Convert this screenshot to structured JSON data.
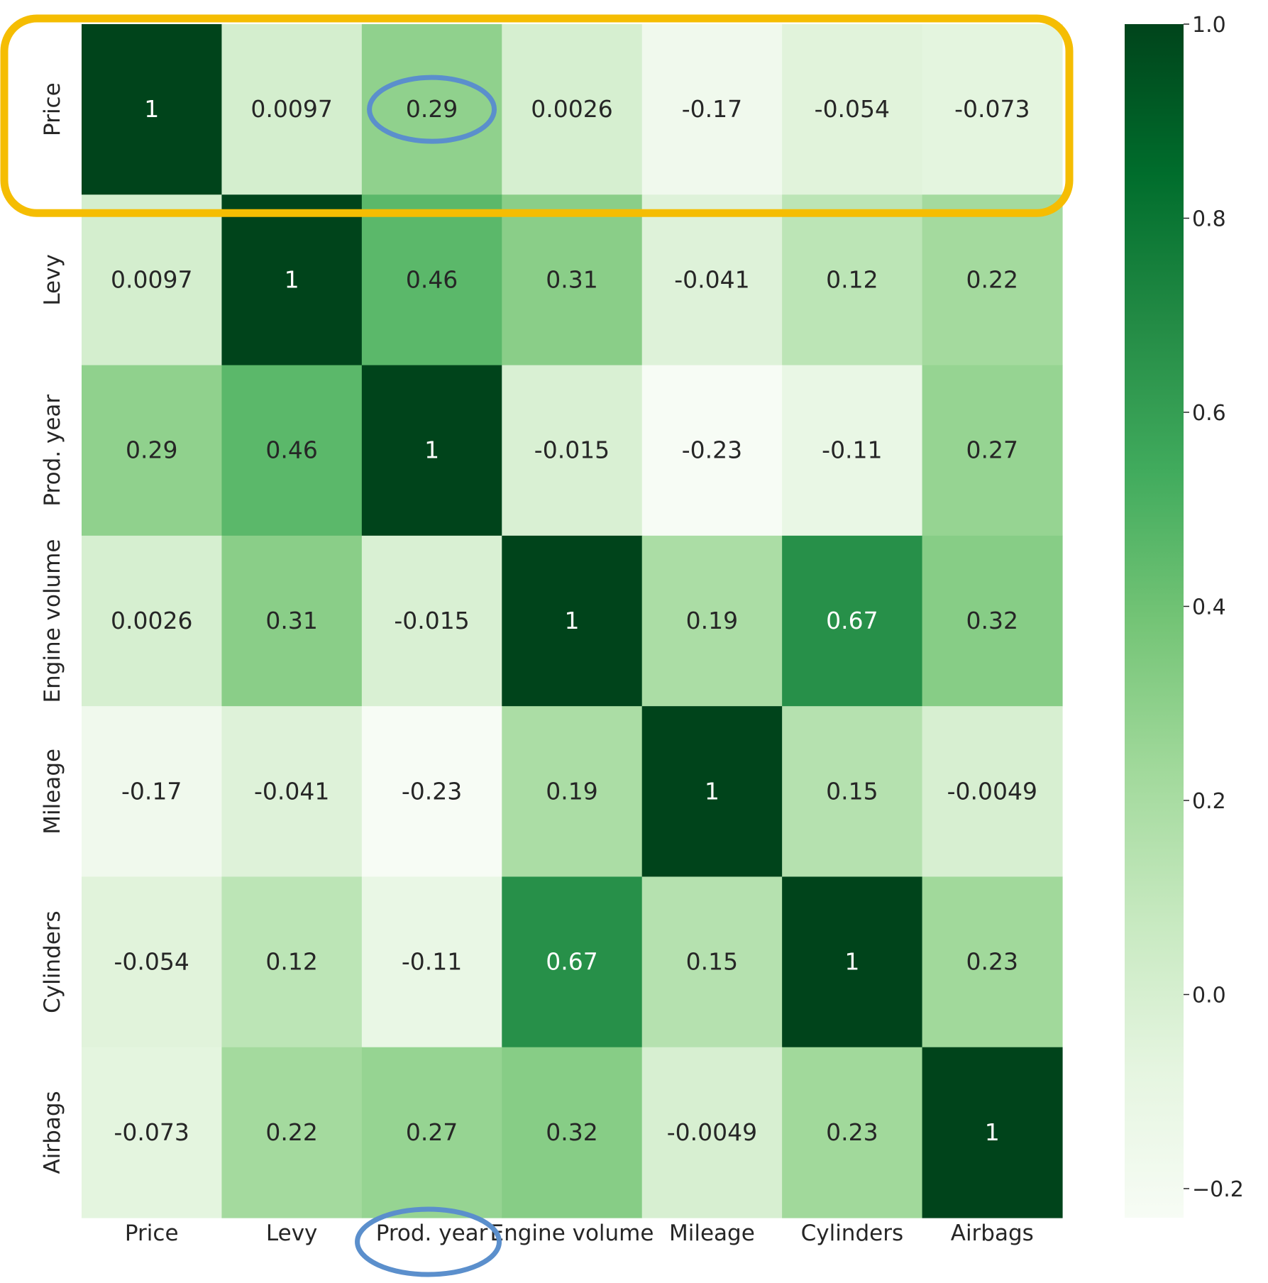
{
  "chart_data": {
    "type": "heatmap",
    "title": "",
    "xlabel": "",
    "ylabel": "",
    "x_categories": [
      "Price",
      "Levy",
      "Prod. year",
      "Engine volume",
      "Mileage",
      "Cylinders",
      "Airbags"
    ],
    "y_categories": [
      "Price",
      "Levy",
      "Prod. year",
      "Engine volume",
      "Mileage",
      "Cylinders",
      "Airbags"
    ],
    "values": [
      [
        1,
        0.0097,
        0.29,
        0.0026,
        -0.17,
        -0.054,
        -0.073
      ],
      [
        0.0097,
        1,
        0.46,
        0.31,
        -0.041,
        0.12,
        0.22
      ],
      [
        0.29,
        0.46,
        1,
        -0.015,
        -0.23,
        -0.11,
        0.27
      ],
      [
        0.0026,
        0.31,
        -0.015,
        1,
        0.19,
        0.67,
        0.32
      ],
      [
        -0.17,
        -0.041,
        -0.23,
        0.19,
        1,
        0.15,
        -0.0049
      ],
      [
        -0.054,
        0.12,
        -0.11,
        0.67,
        0.15,
        1,
        0.23
      ],
      [
        -0.073,
        0.22,
        0.27,
        0.32,
        -0.0049,
        0.23,
        1
      ]
    ],
    "value_labels": [
      [
        "1",
        "0.0097",
        "0.29",
        "0.0026",
        "-0.17",
        "-0.054",
        "-0.073"
      ],
      [
        "0.0097",
        "1",
        "0.46",
        "0.31",
        "-0.041",
        "0.12",
        "0.22"
      ],
      [
        "0.29",
        "0.46",
        "1",
        "-0.015",
        "-0.23",
        "-0.11",
        "0.27"
      ],
      [
        "0.0026",
        "0.31",
        "-0.015",
        "1",
        "0.19",
        "0.67",
        "0.32"
      ],
      [
        "-0.17",
        "-0.041",
        "-0.23",
        "0.19",
        "1",
        "0.15",
        "-0.0049"
      ],
      [
        "-0.054",
        "0.12",
        "-0.11",
        "0.67",
        "0.15",
        "1",
        "0.23"
      ],
      [
        "-0.073",
        "0.22",
        "0.27",
        "0.32",
        "-0.0049",
        "0.23",
        "1"
      ]
    ],
    "colormap": "Greens",
    "colormap_stops": [
      "#f7fcf5",
      "#e5f5e0",
      "#c7e9c0",
      "#a1d99b",
      "#74c476",
      "#41ab5d",
      "#238b45",
      "#006d2c",
      "#00441b"
    ],
    "vmin": -0.23,
    "vmax": 1.0,
    "colorbar": {
      "ticks": [
        1.0,
        0.8,
        0.6,
        0.4,
        0.2,
        0.0,
        -0.2
      ],
      "tick_labels": [
        "1.0",
        "0.8",
        "0.6",
        "0.4",
        "0.2",
        "0.0",
        "−0.2"
      ]
    },
    "grid": false,
    "legend": "colorbar right",
    "annotations": {
      "highlight_row": "Price",
      "highlight_row_color": "#f5bd02",
      "circled_cell": {
        "row": "Price",
        "column": "Prod. year"
      },
      "circled_tick": "Prod. year",
      "circle_color": "#5b8fcc"
    }
  }
}
